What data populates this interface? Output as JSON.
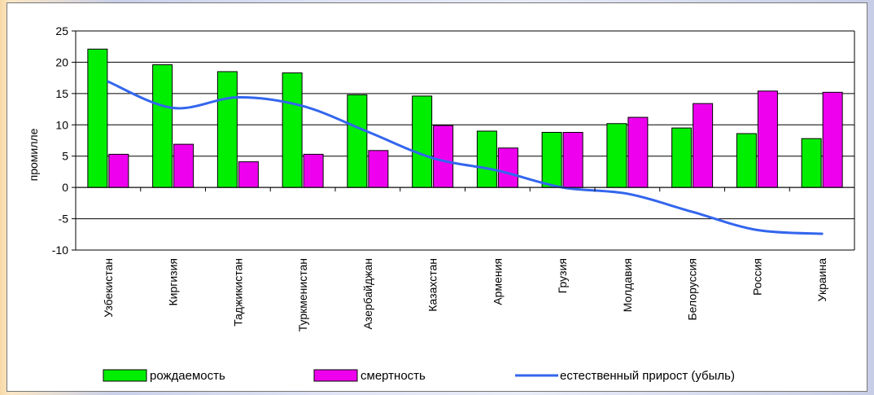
{
  "chart_data": {
    "type": "bar",
    "title": "",
    "xlabel": "",
    "ylabel": "промилле",
    "ylim": [
      -10,
      25
    ],
    "yticks": [
      25,
      20,
      15,
      10,
      5,
      0,
      -5,
      -10
    ],
    "grid": true,
    "legend_position": "bottom",
    "categories": [
      "Узбекистан",
      "Киргизия",
      "Таджикистан",
      "Туркменистан",
      "Азербайджан",
      "Казахстан",
      "Армения",
      "Грузия",
      "Молдавия",
      "Белоруссия",
      "Россия",
      "Украина"
    ],
    "series": [
      {
        "name": "рождаемость",
        "kind": "bar",
        "color": "#00ee00",
        "values": [
          22.1,
          19.6,
          18.5,
          18.3,
          14.8,
          14.6,
          9.0,
          8.8,
          10.2,
          9.5,
          8.6,
          7.8
        ]
      },
      {
        "name": "смертность",
        "kind": "bar",
        "color": "#ee00ee",
        "values": [
          5.3,
          6.9,
          4.1,
          5.3,
          5.9,
          9.9,
          6.3,
          8.8,
          11.2,
          13.4,
          15.4,
          15.2
        ]
      },
      {
        "name": "естественный прирост (убыль)",
        "kind": "line",
        "color": "#3366ee",
        "values": [
          16.9,
          12.7,
          14.4,
          13.0,
          8.9,
          4.7,
          2.7,
          0.0,
          -1.0,
          -3.9,
          -6.8,
          -7.4
        ]
      }
    ]
  }
}
